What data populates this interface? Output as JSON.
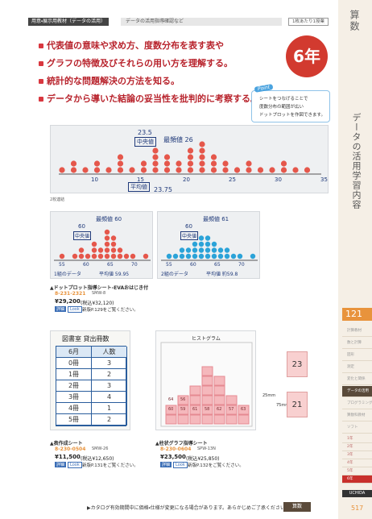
{
  "header": {
    "tag": "用意・展示用教材（データの活用）",
    "subtitle": "データの活用指導確認など",
    "badge": "1枚あたり1授業"
  },
  "side": {
    "subject": "算数",
    "section": "データの活用学習内容",
    "page_index": "121",
    "menu": [
      "計算教材",
      "数と計算",
      "図形",
      "測定",
      "変化と関係",
      "データの活用",
      "プログラミング",
      "算数科教材",
      "ソフト"
    ],
    "grades": [
      "1年",
      "2年",
      "3年",
      "4年",
      "5年",
      "6年"
    ],
    "brand": "UCHIDA",
    "page": "517"
  },
  "objectives": [
    "代表値の意味や求め方、度数分布を表す表や",
    "グラフの特徴及びそれらの用い方を理解する。",
    "統計的な問題解決の方法を知る。",
    "データから導いた結論の妥当性を批判的に考察する。"
  ],
  "grade_badge": "6年",
  "point": {
    "label": "Point",
    "lines": [
      "シートをつなげることで",
      "度数分布の範囲が広い",
      "ドットプロットを作図できます。"
    ]
  },
  "photo_main": {
    "median_value": "23.5",
    "median": "中央値",
    "mode": "最頻値 26",
    "mean": "平均値",
    "mean_value": "23.75",
    "axis": [
      "10",
      "15",
      "20",
      "25",
      "30",
      "35"
    ],
    "caption": "2枚連結"
  },
  "photo_class1": {
    "mode": "最頻値 60",
    "median_value": "60",
    "median": "中央値",
    "group": "1組のデータ",
    "mean": "平均値 59.95",
    "axis": [
      "55",
      "60",
      "65",
      "70"
    ]
  },
  "photo_class2": {
    "mode": "最頻値 61",
    "median_value": "60",
    "median": "中央値",
    "group": "2組のデータ",
    "mean": "平均値 約59.8",
    "axis": [
      "55",
      "60",
      "65",
      "70"
    ]
  },
  "table_photo": {
    "title": "図書室 貸出冊数",
    "headers": [
      "6月",
      "人数"
    ],
    "rows": [
      [
        "0冊",
        "3"
      ],
      [
        "1冊",
        "2"
      ],
      [
        "2冊",
        "3"
      ],
      [
        "3冊",
        "4"
      ],
      [
        "4冊",
        "1"
      ],
      [
        "5冊",
        "2"
      ]
    ]
  },
  "histogram_photo": {
    "title": "ヒストグラム",
    "cells": [
      "60",
      "59",
      "61",
      "58",
      "62",
      "57",
      "63",
      "64",
      "56"
    ],
    "dims": [
      "25mm",
      "75mm"
    ],
    "cards": [
      "23",
      "21"
    ]
  },
  "products": [
    {
      "name": "▲ドットプロット指導シート-EVAおはじき付",
      "code": "8-231-2321",
      "model": "SMW-8",
      "price": "¥29,200",
      "tax_price": "(税込¥32,120)",
      "detail": "詳細",
      "look": "Look",
      "ref": "新版P.129をご覧ください。"
    },
    {
      "name": "▲表作成シート",
      "code": "8-230-0504",
      "model": "SMW-26",
      "price": "¥11,500",
      "tax_price": "(税込¥12,650)",
      "detail": "詳細",
      "look": "Look",
      "ref": "新版P.131をご覧ください。"
    },
    {
      "name": "▲柱状グラフ指導シート",
      "code": "8-230-0604",
      "model": "SPW-13N",
      "price": "¥23,500",
      "tax_price": "(税込¥25,850)",
      "detail": "詳細",
      "look": "Look",
      "ref": "新版P.132をご覧ください。"
    }
  ],
  "footer": {
    "notice": "▶カタログ有効期間中に価格・仕様が変更になる場合があります。あらかじめご了承ください。",
    "tab": "算数"
  }
}
